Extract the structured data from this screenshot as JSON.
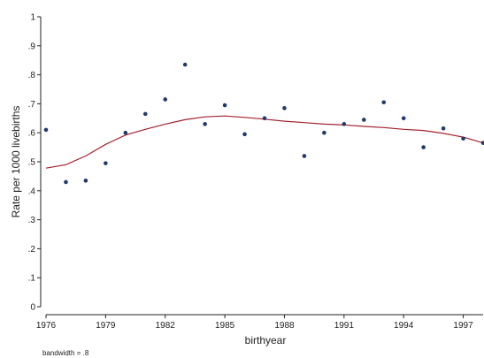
{
  "chart_data": {
    "type": "scatter",
    "title": "",
    "xlabel": "birthyear",
    "ylabel": "Rate per 1000 livebirths",
    "xlim": [
      1976,
      1998
    ],
    "ylim": [
      0,
      10
    ],
    "x_ticks": [
      1976,
      1979,
      1982,
      1985,
      1988,
      1991,
      1994,
      1997
    ],
    "y_ticks": [
      0,
      1,
      2,
      3,
      4,
      5,
      6,
      7,
      8,
      9,
      10
    ],
    "y_tick_labels": [
      "0",
      ".1",
      ".2",
      ".3",
      ".4",
      ".5",
      ".6",
      ".7",
      ".8",
      ".9",
      "1"
    ],
    "grid": false,
    "note": "bandwidth = .8",
    "colors": {
      "points": "#1f3a6b",
      "smoother": "#a3222e",
      "axis": "#222222"
    },
    "series": [
      {
        "type": "scatter",
        "x": [
          1976,
          1977,
          1978,
          1979,
          1980,
          1981,
          1982,
          1983,
          1984,
          1985,
          1986,
          1987,
          1988,
          1989,
          1990,
          1991,
          1992,
          1993,
          1994,
          1995,
          1996,
          1997,
          1998
        ],
        "y": [
          6.1,
          4.3,
          4.35,
          4.95,
          6.0,
          6.65,
          7.15,
          8.35,
          6.3,
          6.95,
          5.95,
          6.5,
          6.85,
          5.2,
          6.0,
          6.3,
          6.45,
          7.05,
          6.5,
          5.5,
          6.15,
          5.8,
          5.65
        ]
      },
      {
        "type": "line",
        "x": [
          1976,
          1977,
          1978,
          1979,
          1980,
          1981,
          1982,
          1983,
          1984,
          1985,
          1986,
          1987,
          1988,
          1989,
          1990,
          1991,
          1992,
          1993,
          1994,
          1995,
          1996,
          1997,
          1998
        ],
        "y": [
          4.78,
          4.9,
          5.2,
          5.6,
          5.92,
          6.12,
          6.3,
          6.45,
          6.55,
          6.58,
          6.53,
          6.47,
          6.4,
          6.35,
          6.3,
          6.27,
          6.22,
          6.18,
          6.12,
          6.08,
          5.98,
          5.85,
          5.65
        ]
      }
    ]
  }
}
